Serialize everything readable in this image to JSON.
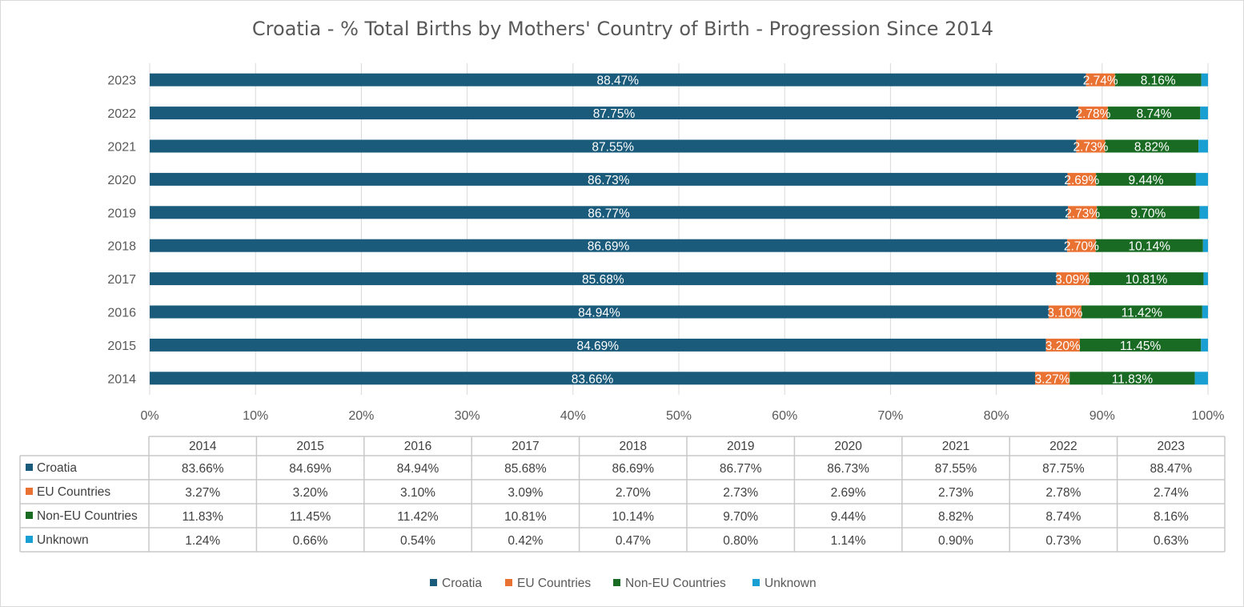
{
  "chart_data": {
    "type": "bar",
    "orientation": "horizontal",
    "stacked": true,
    "title": "Croatia - % Total Births by Mothers' Country of Birth - Progression Since 2014",
    "categories": [
      "2014",
      "2015",
      "2016",
      "2017",
      "2018",
      "2019",
      "2020",
      "2021",
      "2022",
      "2023"
    ],
    "series": [
      {
        "name": "Croatia",
        "color": "#1a5b7c",
        "values": [
          83.66,
          84.69,
          84.94,
          85.68,
          86.69,
          86.77,
          86.73,
          87.55,
          87.75,
          88.47
        ]
      },
      {
        "name": "EU Countries",
        "color": "#e97132",
        "values": [
          3.27,
          3.2,
          3.1,
          3.09,
          2.7,
          2.73,
          2.69,
          2.73,
          2.78,
          2.74
        ]
      },
      {
        "name": "Non-EU Countries",
        "color": "#196b24",
        "values": [
          11.83,
          11.45,
          11.42,
          10.81,
          10.14,
          9.7,
          9.44,
          8.82,
          8.74,
          8.16
        ]
      },
      {
        "name": "Unknown",
        "color": "#1a9fd2",
        "values": [
          1.24,
          0.66,
          0.54,
          0.42,
          0.47,
          0.8,
          1.14,
          0.9,
          0.73,
          0.63
        ]
      }
    ],
    "labeled_series": [
      "Croatia",
      "EU Countries",
      "Non-EU Countries"
    ],
    "xlim": [
      0,
      100
    ],
    "xticks": [
      "0%",
      "10%",
      "20%",
      "30%",
      "40%",
      "50%",
      "60%",
      "70%",
      "80%",
      "90%",
      "100%"
    ],
    "value_suffix": "%",
    "data_table": true,
    "legend_position": "bottom",
    "grid": "vertical"
  }
}
